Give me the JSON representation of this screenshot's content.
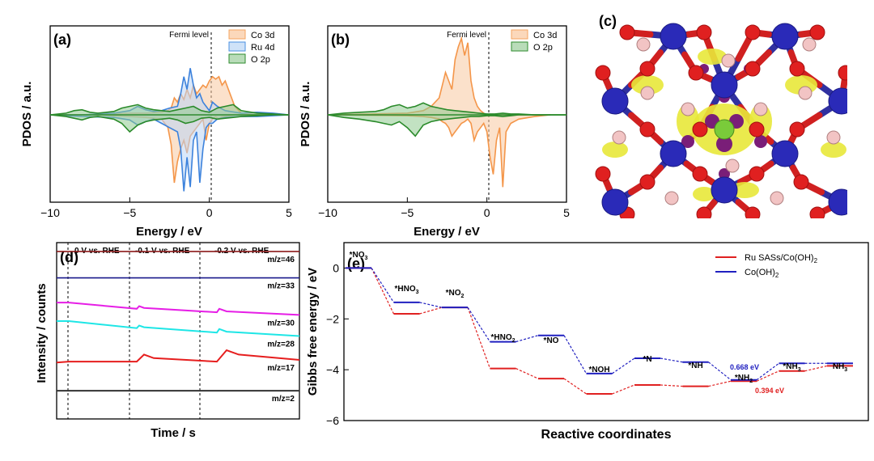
{
  "panels": {
    "a": {
      "letter": "(a)",
      "fermi_label": "Fermi level",
      "ylabel": "PDOS / a.u.",
      "xlabel": "Energy / eV",
      "xticks": [
        -10,
        -5,
        0,
        5
      ],
      "xlim": [
        -10,
        5
      ],
      "ylim": [
        -1.0,
        0.55
      ],
      "legend": [
        {
          "label": "Co 3d",
          "color": "#f4a460"
        },
        {
          "label": "Ru 4d",
          "color": "#4a90e2"
        },
        {
          "label": "O 2p",
          "color": "#2e8b2e"
        }
      ]
    },
    "b": {
      "letter": "(b)",
      "fermi_label": "Fermi level",
      "ylabel": "PDOS / a.u.",
      "xlabel": "Energy / eV",
      "xticks": [
        -10,
        -5,
        0,
        5
      ],
      "xlim": [
        -10,
        5
      ],
      "ylim": [
        -1.0,
        0.55
      ],
      "legend": [
        {
          "label": "Co 3d",
          "color": "#f4a460"
        },
        {
          "label": "O 2p",
          "color": "#2e8b2e"
        }
      ]
    },
    "c": {
      "letter": "(c)"
    },
    "d": {
      "letter": "(d)",
      "ylabel": "Intensity / counts",
      "xlabel": "Time / s",
      "potentials": [
        "0 V vs. RHE",
        "-0.1 V vs. RHE",
        "-0.2 V vs. RHE"
      ],
      "traces": [
        {
          "label": "m/z=46",
          "color": "#8b1a1a"
        },
        {
          "label": "m/z=33",
          "color": "#1a1a8b"
        },
        {
          "label": "m/z=30",
          "color": "#e61ee6"
        },
        {
          "label": "m/z=28",
          "color": "#1ee6e6"
        },
        {
          "label": "m/z=17",
          "color": "#e61e1e"
        },
        {
          "label": "m/z=2",
          "color": "#333333"
        }
      ]
    },
    "e": {
      "letter": "(e)",
      "ylabel": "Gibbs free energy / eV",
      "xlabel": "Reactive coordinates",
      "yticks": [
        0,
        -2,
        -4,
        -6
      ],
      "legend": [
        {
          "label": "Ru SASs/Co(OH)",
          "sub": "2",
          "color": "#e02020"
        },
        {
          "label": "Co(OH)",
          "sub": "2",
          "color": "#2020c0"
        }
      ],
      "annotations": [
        {
          "text": "0.668 eV",
          "color": "#2020c0"
        },
        {
          "text": "0.394 eV",
          "color": "#e02020"
        }
      ]
    }
  },
  "chart_data": [
    {
      "type": "line",
      "panel": "a",
      "xlabel": "Energy / eV",
      "ylabel": "PDOS / a.u.",
      "xlim": [
        -10,
        5
      ],
      "series": [
        {
          "name": "Co 3d",
          "x": [
            -10,
            -7,
            -5,
            -4,
            -3,
            -2.6,
            -2.4,
            -2.2,
            -2.0,
            -1.8,
            -1.6,
            -1.4,
            -1.2,
            -1.0,
            -0.8,
            -0.6,
            -0.4,
            -0.2,
            0,
            0.2,
            0.4,
            0.6,
            0.8,
            1.0,
            1.3,
            1.6,
            2.0,
            3,
            4
          ],
          "up": [
            0,
            0,
            0.02,
            0.02,
            0.03,
            0.05,
            0.08,
            0.2,
            0.15,
            0.25,
            0.18,
            0.3,
            0.2,
            0.35,
            0.25,
            0.3,
            0.35,
            0.32,
            0.4,
            0.45,
            0.42,
            0.45,
            0.35,
            0.4,
            0.25,
            0.1,
            0.02,
            0,
            0
          ],
          "down": [
            0,
            0,
            -0.02,
            -0.03,
            -0.05,
            -0.15,
            -0.35,
            -0.8,
            -0.55,
            -0.4,
            -0.3,
            -0.45,
            -0.25,
            -0.2,
            -0.15,
            -0.1,
            -0.05,
            -0.3,
            -0.1,
            -0.05,
            -0.02,
            -0.05,
            -0.02,
            -0.02,
            -0.01,
            0,
            0,
            0,
            0
          ]
        },
        {
          "name": "Ru 4d",
          "x": [
            -10,
            -8,
            -6,
            -5,
            -4.5,
            -4,
            -3.5,
            -3,
            -2.5,
            -2,
            -1.8,
            -1.6,
            -1.4,
            -1.2,
            -1.0,
            -0.8,
            -0.6,
            -0.4,
            -0.2,
            0,
            0.2,
            0.5,
            1,
            2,
            3,
            4,
            5
          ],
          "up": [
            0,
            0,
            0.02,
            0.05,
            0.1,
            0.06,
            0.04,
            0.05,
            0.08,
            0.1,
            0.25,
            0.45,
            0.3,
            0.55,
            0.35,
            0.2,
            0.25,
            0.15,
            0.1,
            0.05,
            0.15,
            0.1,
            0.05,
            0.02,
            0.03,
            0.02,
            0
          ],
          "down": [
            0,
            -0.02,
            -0.03,
            -0.06,
            -0.12,
            -0.08,
            -0.05,
            -0.1,
            -0.15,
            -0.2,
            -0.4,
            -0.9,
            -0.5,
            -0.85,
            -0.3,
            -0.2,
            -0.8,
            -0.4,
            -0.15,
            -0.1,
            -0.1,
            -0.05,
            -0.03,
            -0.02,
            -0.02,
            -0.01,
            0
          ]
        },
        {
          "name": "O 2p",
          "x": [
            -10,
            -9,
            -8.5,
            -8,
            -7.5,
            -7,
            -6,
            -5.5,
            -5,
            -4.5,
            -4,
            -3.5,
            -3,
            -2.5,
            -2,
            -1.5,
            -1,
            -0.5,
            0,
            0.5,
            1,
            1.5,
            2,
            3,
            4,
            5
          ],
          "up": [
            0,
            0.02,
            0.05,
            0.06,
            0.03,
            0.02,
            0.04,
            0.08,
            0.1,
            0.12,
            0.08,
            0.06,
            0.05,
            0.04,
            0.06,
            0.08,
            0.1,
            0.05,
            0.03,
            0.08,
            0.1,
            0.12,
            0.05,
            0.02,
            0.01,
            0
          ],
          "down": [
            0,
            -0.02,
            -0.04,
            -0.06,
            -0.03,
            -0.02,
            -0.05,
            -0.1,
            -0.2,
            -0.12,
            -0.08,
            -0.06,
            -0.05,
            -0.04,
            -0.06,
            -0.1,
            -0.08,
            -0.04,
            -0.03,
            -0.05,
            -0.04,
            -0.03,
            -0.02,
            -0.01,
            0,
            0
          ]
        }
      ]
    },
    {
      "type": "line",
      "panel": "b",
      "xlabel": "Energy / eV",
      "ylabel": "PDOS / a.u.",
      "xlim": [
        -10,
        5
      ],
      "series": [
        {
          "name": "Co 3d",
          "x": [
            -10,
            -5,
            -4,
            -3.5,
            -3,
            -2.8,
            -2.6,
            -2.4,
            -2.2,
            -2.0,
            -1.8,
            -1.6,
            -1.4,
            -1.2,
            -1.0,
            -0.8,
            -0.6,
            -0.4,
            -0.2,
            0,
            0.2,
            0.4,
            0.6,
            0.8,
            1.0,
            1.2,
            1.5,
            2,
            3,
            4
          ],
          "up": [
            0,
            0.02,
            0.05,
            0.1,
            0.2,
            0.35,
            0.5,
            0.4,
            0.3,
            0.65,
            0.8,
            0.9,
            0.7,
            0.85,
            0.4,
            0.2,
            0.1,
            0.05,
            0.02,
            0,
            0,
            0,
            0,
            0,
            0,
            0,
            0,
            0,
            0,
            0
          ],
          "down": [
            0,
            -0.01,
            -0.02,
            -0.03,
            -0.05,
            -0.08,
            -0.1,
            -0.15,
            -0.25,
            -0.2,
            -0.15,
            -0.1,
            -0.08,
            -0.05,
            -0.1,
            -0.3,
            -0.2,
            -0.15,
            -0.1,
            -0.2,
            -0.5,
            -0.7,
            -0.3,
            -0.15,
            -0.85,
            -0.2,
            -0.1,
            -0.05,
            -0.02,
            0
          ]
        },
        {
          "name": "O 2p",
          "x": [
            -10,
            -9,
            -8,
            -7,
            -6.5,
            -6,
            -5.5,
            -5,
            -4.5,
            -4,
            -3.5,
            -3,
            -2.5,
            -2,
            -1.5,
            -1,
            -0.5,
            0,
            0.5,
            1,
            1.5,
            2,
            3,
            4,
            5
          ],
          "up": [
            0,
            0.02,
            0.03,
            0.04,
            0.06,
            0.1,
            0.12,
            0.08,
            0.1,
            0.14,
            0.1,
            0.08,
            0.06,
            0.05,
            0.04,
            0.03,
            0.02,
            0.01,
            0.01,
            0.02,
            0.01,
            0.01,
            0,
            0,
            0
          ],
          "down": [
            0,
            -0.03,
            -0.05,
            -0.08,
            -0.1,
            -0.12,
            -0.08,
            -0.15,
            -0.25,
            -0.12,
            -0.08,
            -0.06,
            -0.05,
            -0.04,
            -0.03,
            -0.02,
            -0.02,
            -0.01,
            -0.01,
            -0.02,
            -0.01,
            0,
            0,
            0,
            0
          ]
        }
      ]
    },
    {
      "type": "line",
      "panel": "d",
      "xlabel": "Time / s",
      "ylabel": "Intensity / counts",
      "series": [
        {
          "name": "m/z=46",
          "x": [
            0,
            1
          ],
          "y": [
            0.95,
            0.95
          ]
        },
        {
          "name": "m/z=33",
          "x": [
            0,
            1
          ],
          "y": [
            0.8,
            0.8
          ]
        },
        {
          "name": "m/z=30",
          "x": [
            0,
            0.05,
            0.33,
            0.34,
            0.36,
            0.66,
            0.67,
            0.7,
            1.0
          ],
          "y": [
            0.66,
            0.66,
            0.625,
            0.64,
            0.63,
            0.605,
            0.625,
            0.61,
            0.59
          ]
        },
        {
          "name": "m/z=28",
          "x": [
            0,
            0.05,
            0.33,
            0.34,
            0.36,
            0.66,
            0.67,
            0.7,
            1.0
          ],
          "y": [
            0.555,
            0.555,
            0.515,
            0.53,
            0.52,
            0.49,
            0.51,
            0.495,
            0.47
          ]
        },
        {
          "name": "m/z=17",
          "x": [
            0,
            0.05,
            0.33,
            0.36,
            0.4,
            0.66,
            0.7,
            0.75,
            1.0
          ],
          "y": [
            0.32,
            0.325,
            0.325,
            0.365,
            0.345,
            0.325,
            0.39,
            0.365,
            0.335
          ]
        },
        {
          "name": "m/z=2",
          "x": [
            0,
            1
          ],
          "y": [
            0.16,
            0.16
          ]
        }
      ]
    },
    {
      "type": "line",
      "panel": "e",
      "xlabel": "Reactive coordinates",
      "ylabel": "Gibbs free energy / eV",
      "categories": [
        "*NO3",
        "*HNO3",
        "*NO2",
        "*HNO2",
        "*NO",
        "*NOH",
        "*N",
        "*NH",
        "*NH2",
        "*NH3",
        "NH3"
      ],
      "ylim": [
        -6,
        1
      ],
      "series": [
        {
          "name": "Ru SASs/Co(OH)2",
          "values": [
            0,
            -1.8,
            -1.55,
            -3.95,
            -4.35,
            -4.95,
            -4.6,
            -4.65,
            -4.45,
            -4.05,
            -3.85
          ]
        },
        {
          "name": "Co(OH)2",
          "values": [
            0,
            -1.35,
            -1.55,
            -2.9,
            -2.65,
            -4.15,
            -3.55,
            -3.7,
            -4.4,
            -3.75,
            -3.75
          ]
        }
      ]
    }
  ]
}
